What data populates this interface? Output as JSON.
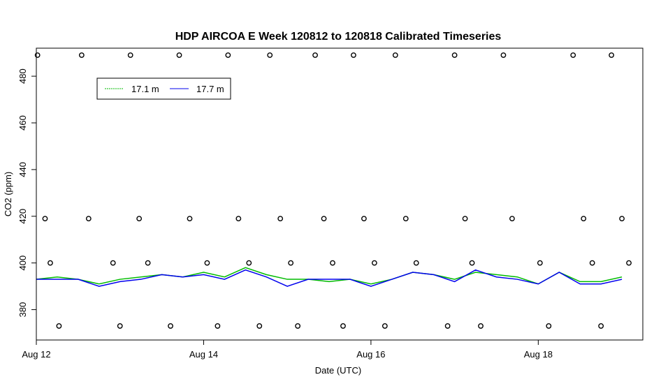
{
  "chart_data": {
    "type": "scatter",
    "title": "HDP AIRCOA E  Week 120812 to 120818  Calibrated Timeseries",
    "xlabel": "Date (UTC)",
    "ylabel": "CO2 (ppm)",
    "xlim": [
      "2012-08-12T00:00Z",
      "2012-08-19T06:00Z"
    ],
    "ylim": [
      367,
      492
    ],
    "x_ticks": [
      {
        "label": "Aug 12",
        "date": "2012-08-12"
      },
      {
        "label": "Aug 14",
        "date": "2012-08-14"
      },
      {
        "label": "Aug 16",
        "date": "2012-08-16"
      },
      {
        "label": "Aug 18",
        "date": "2012-08-18"
      }
    ],
    "y_ticks": [
      380,
      400,
      420,
      440,
      460,
      480
    ],
    "grid": false,
    "legend": {
      "placement": "top-left"
    },
    "series": [
      {
        "name": "17.1 m",
        "style": "line",
        "color": "#00bb00",
        "x": [
          "2012-08-12T00:00Z",
          "2012-08-12T06:00Z",
          "2012-08-12T12:00Z",
          "2012-08-12T18:00Z",
          "2012-08-13T00:00Z",
          "2012-08-13T06:00Z",
          "2012-08-13T12:00Z",
          "2012-08-13T18:00Z",
          "2012-08-14T00:00Z",
          "2012-08-14T06:00Z",
          "2012-08-14T12:00Z",
          "2012-08-14T18:00Z",
          "2012-08-15T00:00Z",
          "2012-08-15T06:00Z",
          "2012-08-15T12:00Z",
          "2012-08-15T18:00Z",
          "2012-08-16T00:00Z",
          "2012-08-16T06:00Z",
          "2012-08-16T12:00Z",
          "2012-08-16T18:00Z",
          "2012-08-17T00:00Z",
          "2012-08-17T06:00Z",
          "2012-08-17T12:00Z",
          "2012-08-17T18:00Z",
          "2012-08-18T00:00Z",
          "2012-08-18T06:00Z",
          "2012-08-18T12:00Z",
          "2012-08-18T18:00Z",
          "2012-08-19T00:00Z"
        ],
        "values": [
          393,
          394,
          393,
          391,
          393,
          394,
          395,
          394,
          396,
          394,
          398,
          395,
          393,
          393,
          392,
          393,
          391,
          393,
          396,
          395,
          393,
          396,
          395,
          394,
          391,
          396,
          392,
          392,
          394
        ]
      },
      {
        "name": "17.7 m",
        "style": "line",
        "color": "#0000ee",
        "x": [
          "2012-08-12T00:00Z",
          "2012-08-12T06:00Z",
          "2012-08-12T12:00Z",
          "2012-08-12T18:00Z",
          "2012-08-13T00:00Z",
          "2012-08-13T06:00Z",
          "2012-08-13T12:00Z",
          "2012-08-13T18:00Z",
          "2012-08-14T00:00Z",
          "2012-08-14T06:00Z",
          "2012-08-14T12:00Z",
          "2012-08-14T18:00Z",
          "2012-08-15T00:00Z",
          "2012-08-15T06:00Z",
          "2012-08-15T12:00Z",
          "2012-08-15T18:00Z",
          "2012-08-16T00:00Z",
          "2012-08-16T06:00Z",
          "2012-08-16T12:00Z",
          "2012-08-16T18:00Z",
          "2012-08-17T00:00Z",
          "2012-08-17T06:00Z",
          "2012-08-17T12:00Z",
          "2012-08-17T18:00Z",
          "2012-08-18T00:00Z",
          "2012-08-18T06:00Z",
          "2012-08-18T12:00Z",
          "2012-08-18T18:00Z",
          "2012-08-19T00:00Z"
        ],
        "values": [
          393,
          393,
          393,
          390,
          392,
          393,
          395,
          394,
          395,
          393,
          397,
          394,
          390,
          393,
          393,
          393,
          390,
          393,
          396,
          395,
          392,
          397,
          394,
          393,
          391,
          396,
          391,
          391,
          393
        ]
      },
      {
        "name": "",
        "style": "points",
        "color": "#000000",
        "x": [
          "2012-08-12T00:20Z",
          "2012-08-12T02:30Z",
          "2012-08-12T04:00Z",
          "2012-08-12T06:30Z",
          "2012-08-12T13:00Z",
          "2012-08-12T15:00Z",
          "2012-08-12T22:00Z",
          "2012-08-13T00:00Z",
          "2012-08-13T03:00Z",
          "2012-08-13T05:30Z",
          "2012-08-13T08:00Z",
          "2012-08-13T14:30Z",
          "2012-08-13T17:00Z",
          "2012-08-13T20:00Z",
          "2012-08-14T01:00Z",
          "2012-08-14T04:00Z",
          "2012-08-14T07:00Z",
          "2012-08-14T10:00Z",
          "2012-08-14T13:00Z",
          "2012-08-14T16:00Z",
          "2012-08-14T19:00Z",
          "2012-08-14T22:00Z",
          "2012-08-15T01:00Z",
          "2012-08-15T03:00Z",
          "2012-08-15T08:00Z",
          "2012-08-15T10:30Z",
          "2012-08-15T13:00Z",
          "2012-08-15T16:00Z",
          "2012-08-15T19:00Z",
          "2012-08-15T22:00Z",
          "2012-08-16T01:00Z",
          "2012-08-16T04:00Z",
          "2012-08-16T07:00Z",
          "2012-08-16T10:00Z",
          "2012-08-16T13:00Z",
          "2012-08-16T22:00Z",
          "2012-08-17T00:00Z",
          "2012-08-17T03:00Z",
          "2012-08-17T05:00Z",
          "2012-08-17T07:30Z",
          "2012-08-17T14:00Z",
          "2012-08-17T16:30Z",
          "2012-08-18T00:30Z",
          "2012-08-18T03:00Z",
          "2012-08-18T10:00Z",
          "2012-08-18T13:00Z",
          "2012-08-18T15:30Z",
          "2012-08-18T18:00Z",
          "2012-08-18T21:00Z",
          "2012-08-19T00:00Z",
          "2012-08-19T02:00Z"
        ],
        "values": [
          489,
          419,
          400,
          373,
          489,
          419,
          400,
          373,
          489,
          419,
          400,
          373,
          489,
          419,
          400,
          373,
          489,
          419,
          400,
          373,
          489,
          419,
          400,
          373,
          489,
          419,
          400,
          373,
          489,
          419,
          400,
          373,
          489,
          419,
          400,
          373,
          489,
          419,
          400,
          373,
          489,
          419,
          400,
          373,
          489,
          419,
          400,
          373,
          489,
          419,
          400
        ]
      }
    ]
  }
}
